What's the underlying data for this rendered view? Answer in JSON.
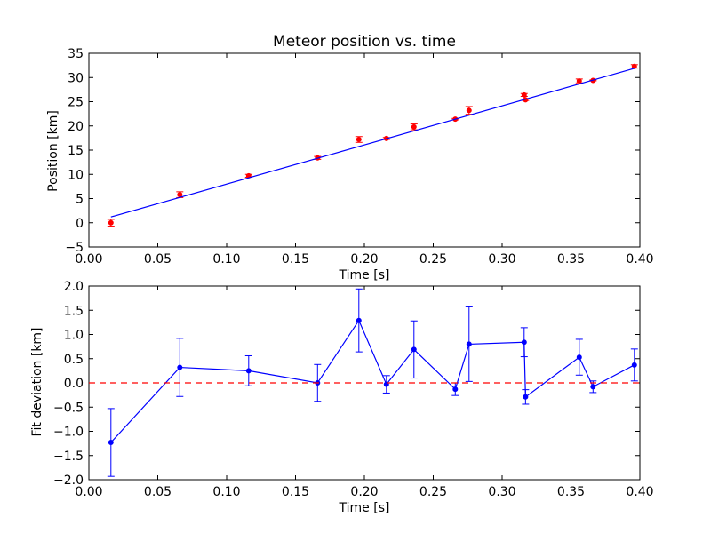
{
  "chart_data": [
    {
      "type": "scatter",
      "title": "Meteor position vs. time",
      "xlabel": "Time [s]",
      "ylabel": "Position [km]",
      "xlim": [
        0.0,
        0.4
      ],
      "ylim": [
        -5,
        35
      ],
      "xticks": [
        "0.00",
        "0.05",
        "0.10",
        "0.15",
        "0.20",
        "0.25",
        "0.30",
        "0.35",
        "0.40"
      ],
      "yticks": [
        "−5",
        "0",
        "5",
        "10",
        "15",
        "20",
        "25",
        "30",
        "35"
      ],
      "grid": false,
      "series": [
        {
          "kind": "errorbar-points",
          "color": "#ff0000",
          "x": [
            0.016,
            0.066,
            0.116,
            0.166,
            0.196,
            0.216,
            0.236,
            0.266,
            0.276,
            0.316,
            0.317,
            0.356,
            0.366,
            0.396
          ],
          "y": [
            0.0,
            5.8,
            9.7,
            13.4,
            17.2,
            17.4,
            19.8,
            21.4,
            23.2,
            26.4,
            25.4,
            29.3,
            29.4,
            32.3
          ],
          "yerr": [
            0.7,
            0.6,
            0.3,
            0.3,
            0.6,
            0.2,
            0.6,
            0.15,
            0.8,
            0.3,
            0.15,
            0.4,
            0.1,
            0.35
          ]
        },
        {
          "kind": "fit-line",
          "color": "#0000ff",
          "x": [
            0.016,
            0.396
          ],
          "y": [
            1.2,
            31.9
          ]
        }
      ]
    },
    {
      "type": "line",
      "title": "",
      "xlabel": "Time [s]",
      "ylabel": "Fit deviation [km]",
      "xlim": [
        0.0,
        0.4
      ],
      "ylim": [
        -2.0,
        2.0
      ],
      "xticks": [
        "0.00",
        "0.05",
        "0.10",
        "0.15",
        "0.20",
        "0.25",
        "0.30",
        "0.35",
        "0.40"
      ],
      "yticks": [
        "−2.0",
        "−1.5",
        "−1.0",
        "−0.5",
        "0.0",
        "0.5",
        "1.0",
        "1.5",
        "2.0"
      ],
      "grid": false,
      "series": [
        {
          "kind": "errorbar-line",
          "color": "#0000ff",
          "x": [
            0.016,
            0.066,
            0.116,
            0.166,
            0.196,
            0.216,
            0.236,
            0.266,
            0.276,
            0.316,
            0.317,
            0.356,
            0.366,
            0.396
          ],
          "y": [
            -1.23,
            0.32,
            0.25,
            0.0,
            1.29,
            -0.03,
            0.69,
            -0.13,
            0.8,
            0.84,
            -0.29,
            0.53,
            -0.08,
            0.37
          ],
          "yerr": [
            0.7,
            0.6,
            0.31,
            0.38,
            0.65,
            0.18,
            0.59,
            0.13,
            0.77,
            0.3,
            0.15,
            0.37,
            0.12,
            0.33
          ]
        },
        {
          "kind": "reference-line",
          "color": "#ff0000",
          "style": "dashed",
          "y": 0.0
        }
      ]
    }
  ]
}
